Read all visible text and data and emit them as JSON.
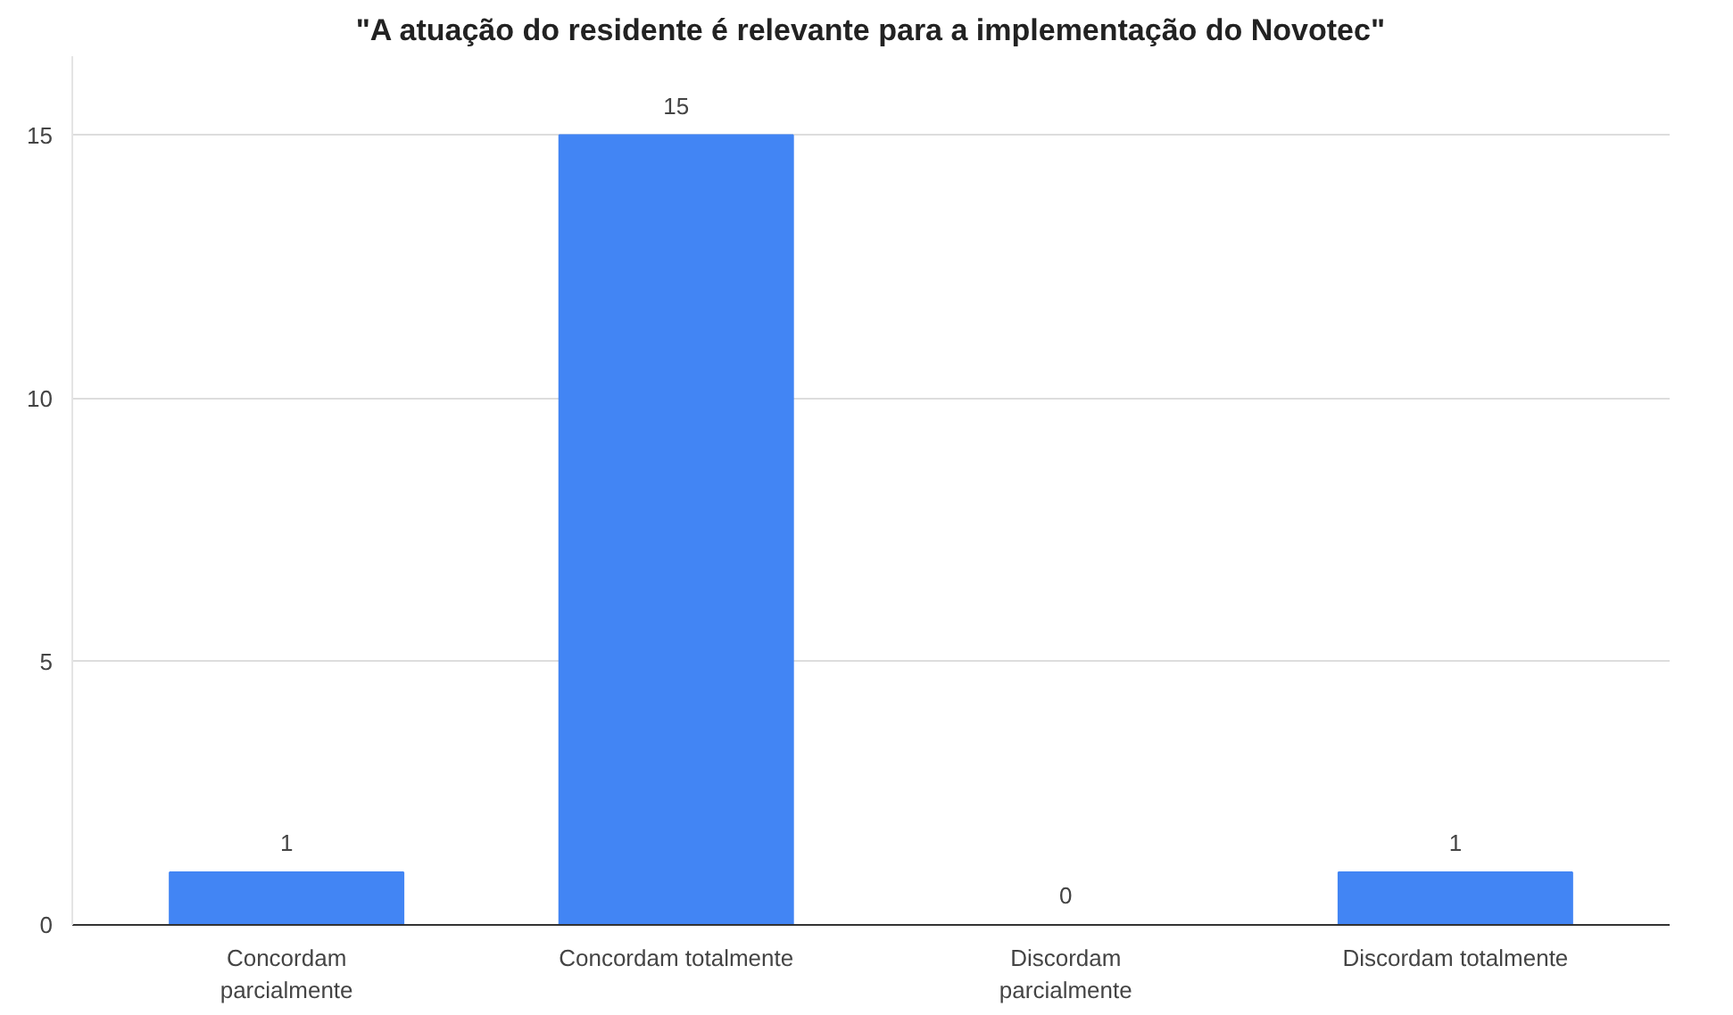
{
  "chart_data": {
    "type": "bar",
    "title": "\"A atuação do residente é relevante para a implementação do Novotec\"",
    "categories": [
      "Concordam parcialmente",
      "Concordam totalmente",
      "Discordam parcialmente",
      "Discordam totalmente"
    ],
    "values": [
      1,
      15,
      0,
      1
    ],
    "color": "#4285f4",
    "ylim": [
      0,
      16.5
    ],
    "yticks": [
      0,
      5,
      10,
      15
    ],
    "grid": "y",
    "data_labels": true
  }
}
